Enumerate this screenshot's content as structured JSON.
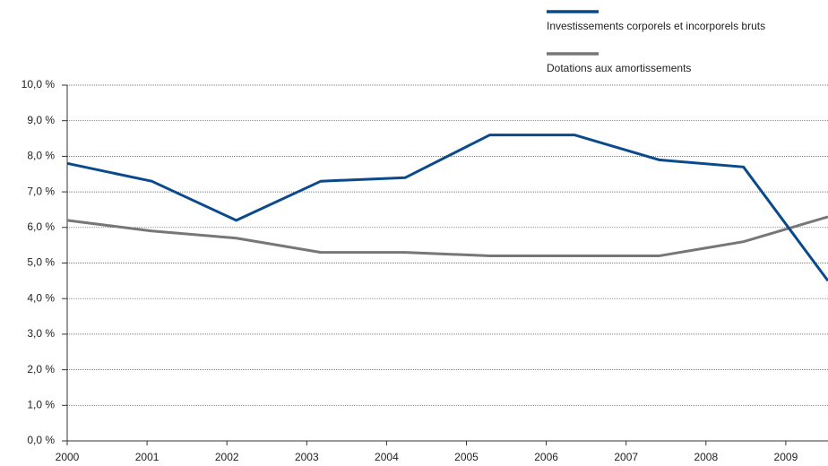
{
  "chart_data": {
    "type": "line",
    "categories": [
      "2000",
      "2001",
      "2002",
      "2003",
      "2004",
      "2005",
      "2006",
      "2007",
      "2008",
      "2009"
    ],
    "series": [
      {
        "name": "Investissements corporels et incorporels bruts",
        "color": "#0a4a8c",
        "values": [
          7.8,
          7.3,
          6.2,
          7.3,
          7.4,
          8.6,
          8.6,
          7.9,
          7.7,
          4.5
        ]
      },
      {
        "name": "Dotations aux amortissements",
        "color": "#777777",
        "values": [
          6.2,
          5.9,
          5.7,
          5.3,
          5.3,
          5.2,
          5.2,
          5.2,
          5.6,
          6.3
        ]
      }
    ],
    "ylim": [
      0,
      10
    ],
    "yticks": [
      {
        "value": 0,
        "label": "0,0 %"
      },
      {
        "value": 1,
        "label": "1,0 %"
      },
      {
        "value": 2,
        "label": "2,0 %"
      },
      {
        "value": 3,
        "label": "3,0 %"
      },
      {
        "value": 4,
        "label": "4,0 %"
      },
      {
        "value": 5,
        "label": "5,0 %"
      },
      {
        "value": 6,
        "label": "6,0 %"
      },
      {
        "value": 7,
        "label": "7,0 %"
      },
      {
        "value": 8,
        "label": "8,0 %"
      },
      {
        "value": 9,
        "label": "9,0 %"
      },
      {
        "value": 10,
        "label": "10,0 %"
      }
    ],
    "grid": true,
    "legend": "top-right"
  }
}
